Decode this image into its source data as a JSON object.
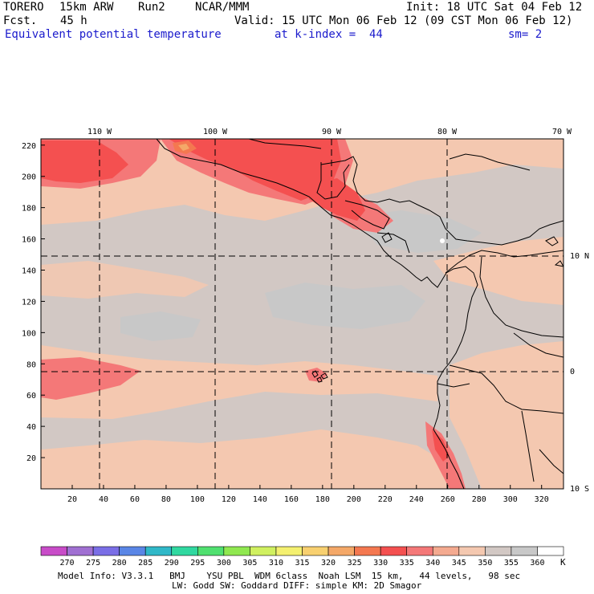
{
  "header": {
    "model": "TORERO",
    "resolution": "15km ARW",
    "run": "Run2",
    "org": "NCAR/MMM",
    "init": "Init: 18 UTC Sat 04 Feb 12",
    "fcst_label": "Fcst.",
    "fcst_value": "45 h",
    "valid": "Valid: 15 UTC Mon 06 Feb 12 (09 CST Mon 06 Feb 12)",
    "field": "Equivalent potential temperature",
    "level": "at k-index =  44",
    "smooth": "sm= 2"
  },
  "map": {
    "lon_labels": [
      "110 W",
      "100 W",
      "90 W",
      "80 W",
      "70 W"
    ],
    "lat_labels": [
      "10 N",
      "0",
      "10 S"
    ],
    "x_ticks": [
      20,
      40,
      60,
      80,
      100,
      120,
      140,
      160,
      180,
      200,
      220,
      240,
      260,
      280,
      300,
      320
    ],
    "y_ticks": [
      20,
      40,
      60,
      80,
      100,
      120,
      140,
      160,
      180,
      200,
      220
    ]
  },
  "colorbar": {
    "unit": "K",
    "levels": [
      "270",
      "275",
      "280",
      "285",
      "290",
      "295",
      "300",
      "305",
      "310",
      "315",
      "320",
      "325",
      "330",
      "335",
      "340",
      "345",
      "350",
      "355",
      "360"
    ],
    "colors": [
      "#c84cc8",
      "#a070d2",
      "#7a6ee6",
      "#5a86e6",
      "#30b8c8",
      "#30d8a0",
      "#50e070",
      "#90e850",
      "#d0f060",
      "#f4f070",
      "#f8d070",
      "#f4a868",
      "#f47850",
      "#f45050",
      "#f47878",
      "#f4aa90",
      "#f4c8b0",
      "#d2c8c4",
      "#c8c8c8",
      "#ffffff"
    ]
  },
  "footer": {
    "line1": "Model Info: V3.3.1   BMJ    YSU PBL  WDM 6class  Noah LSM  15 km,   44 levels,   98 sec",
    "line2": "LW: Godd SW: Goddard DIFF: simple KM: 2D Smagor"
  },
  "colors": {
    "land_boundary": "#000000",
    "grid_line": "#000000",
    "header_blue": "#1a1acc"
  }
}
